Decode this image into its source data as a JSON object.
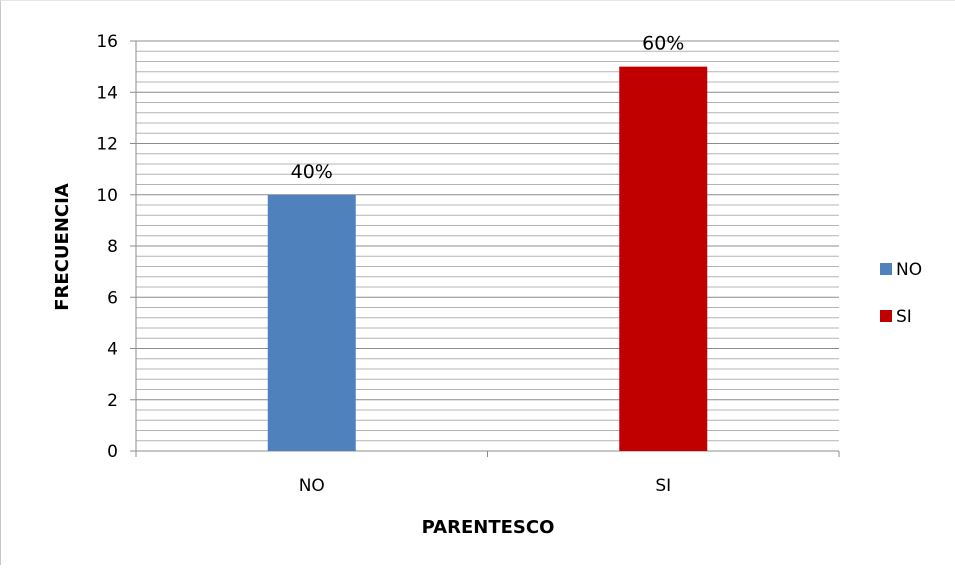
{
  "chart_data": {
    "type": "bar",
    "categories": [
      "NO",
      "SI"
    ],
    "values": [
      10,
      15
    ],
    "data_labels": [
      "40%",
      "60%"
    ],
    "colors": [
      "#4f81bd",
      "#c00000"
    ],
    "xlabel": "PARENTESCO",
    "ylabel": "FRECUENCIA",
    "ylim": [
      0,
      16
    ],
    "yticks": [
      0,
      2,
      4,
      6,
      8,
      10,
      12,
      14,
      16
    ],
    "ytick_labels": [
      "0",
      "2",
      "4",
      "6",
      "8",
      "10",
      "12",
      "14",
      "16"
    ],
    "grid": true,
    "minor_grid_step": 0.4,
    "legend": {
      "placement": "right",
      "entries": [
        {
          "label": "NO",
          "color": "#4f81bd"
        },
        {
          "label": "SI",
          "color": "#c00000"
        }
      ]
    }
  }
}
